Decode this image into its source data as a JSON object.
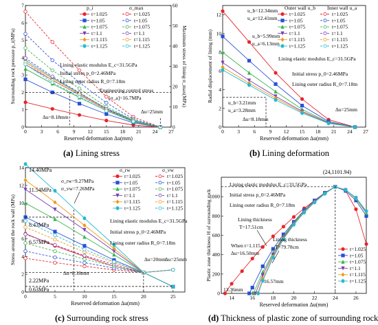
{
  "captions": {
    "a": {
      "tag": "(a)",
      "text": "Lining stress"
    },
    "b": {
      "tag": "(b)",
      "text": "Lining deformation"
    },
    "c": {
      "tag": "(c)",
      "text": "Surrounding rock stress"
    },
    "d": {
      "tag": "(d)",
      "text": "Thickness of plastic zone of surrounding rock"
    }
  },
  "colors": {
    "t1.025": "#e8242b",
    "t1.05": "#2a4fd6",
    "t1.075": "#39b54a",
    "t1.1": "#7b3fb0",
    "t1.115": "#ee9a1a",
    "t1.125": "#24b9d2"
  },
  "chart_data": [
    {
      "id": "a",
      "type": "line",
      "xlabel": "Reserved deformation Δu(mm)",
      "ylabel": "Surrounding rock pressure p_i(MPa)",
      "y2label": "Maximum stress of lining σ_max(MPa)",
      "xlim": [
        0,
        27
      ],
      "ylim": [
        0,
        7
      ],
      "y2lim": [
        0,
        60
      ],
      "xticks": [
        0,
        3,
        6,
        9,
        12,
        15,
        18,
        21,
        24,
        27
      ],
      "yticks": [
        0,
        1,
        2,
        3,
        4,
        5,
        6,
        7
      ],
      "y2ticks": [
        0,
        10,
        20,
        30,
        40,
        50,
        60
      ],
      "legend": {
        "col_headers": [
          "p_i",
          "σ_max"
        ],
        "rows": [
          "t=1.025",
          "t=1.05",
          "t=1.075",
          "t=1.1",
          "t=1.115",
          "t=1.125"
        ],
        "placement": "top-right"
      },
      "texts": [
        "Lining elastic modulus E_c=31.5GPa",
        "Initial stress p_0=2.46MPa",
        "Lining outer radius R_0=7.18m",
        "Engineering control stress",
        "[σ_a]=16.7MPa",
        "Δu=8.18mm",
        "Δu=25mm"
      ],
      "series": [
        {
          "name": "t=1.025",
          "x": [
            0,
            5,
            10,
            15,
            20,
            25
          ],
          "y": [
            1.43,
            1.05,
            0.7,
            0.38,
            0.12,
            0.0
          ]
        },
        {
          "name": "t=1.05",
          "x": [
            0,
            5,
            10,
            15,
            20,
            25
          ],
          "y": [
            2.75,
            2.0,
            1.35,
            0.75,
            0.25,
            0.0
          ]
        },
        {
          "name": "t=1.075",
          "x": [
            0,
            5,
            10,
            15,
            20,
            25
          ],
          "y": [
            3.35,
            2.5,
            1.7,
            0.95,
            0.3,
            0.0
          ]
        },
        {
          "name": "t=1.1",
          "x": [
            0,
            5,
            10,
            15,
            20,
            25
          ],
          "y": [
            3.6,
            2.7,
            1.85,
            1.0,
            0.35,
            0.0
          ]
        },
        {
          "name": "t=1.115",
          "x": [
            0,
            5,
            10,
            15,
            20,
            25
          ],
          "y": [
            3.75,
            2.8,
            1.92,
            1.05,
            0.38,
            0.0
          ]
        },
        {
          "name": "t=1.125",
          "x": [
            0,
            5,
            10,
            15,
            20,
            25
          ],
          "y": [
            3.85,
            2.85,
            1.95,
            1.08,
            0.4,
            0.0
          ]
        },
        {
          "name": "σmax t=1.025",
          "x": [
            0,
            5,
            10,
            15,
            20,
            25
          ],
          "y2": [
            57,
            42,
            28,
            15,
            5,
            0
          ]
        },
        {
          "name": "σmax t=1.05",
          "x": [
            0,
            5,
            10,
            15,
            20,
            25
          ],
          "y2": [
            46,
            33,
            22,
            12,
            4,
            0
          ]
        },
        {
          "name": "σmax t=1.075",
          "x": [
            0,
            5,
            10,
            15,
            20,
            25
          ],
          "y2": [
            39,
            28,
            19,
            10,
            3.5,
            0
          ]
        },
        {
          "name": "σmax t=1.1",
          "x": [
            0,
            5,
            10,
            15,
            20,
            25
          ],
          "y2": [
            34,
            25,
            17,
            9,
            3,
            0
          ]
        },
        {
          "name": "σmax t=1.115",
          "x": [
            0,
            5,
            10,
            15,
            20,
            25
          ],
          "y2": [
            32,
            23,
            16,
            8.5,
            3,
            0
          ]
        },
        {
          "name": "σmax t=1.125",
          "x": [
            0,
            5,
            10,
            15,
            20,
            25
          ],
          "y2": [
            31,
            22,
            15,
            8,
            2.8,
            0
          ]
        }
      ]
    },
    {
      "id": "b",
      "type": "line",
      "xlabel": "Reserved deformation Δu(mm)",
      "ylabel": "Radial displacement of lining (mm)",
      "xlim": [
        0,
        27
      ],
      "ylim": [
        0,
        13
      ],
      "xticks": [
        0,
        3,
        6,
        9,
        12,
        15,
        18,
        21,
        24,
        27
      ],
      "yticks": [
        0,
        2,
        4,
        6,
        8,
        10,
        12
      ],
      "legend": {
        "col_headers": [
          "Outer wall u_b",
          "Inner wall u_a"
        ],
        "rows": [
          "t=1.025",
          "t=1.05",
          "t=1.075",
          "t=1.1",
          "t=1.115",
          "t=1.125"
        ],
        "placement": "top-right"
      },
      "texts": [
        "u_b=12.34mm",
        "u_a=12.41mm",
        "u_b=5.99mm",
        "u_a=6.13mm",
        "u_b=3.21mm",
        "u_a=3.28mm",
        "Δu=8.18mm",
        "Δu=25mm",
        "Lining elastic modulus E_c=31.5GPa",
        "Initial stress p_0=2.46MPa",
        "Lining outer radius R_0=7.18m"
      ],
      "series": [
        {
          "name": "t=1.025",
          "x": [
            0,
            5,
            10,
            15,
            20,
            25
          ],
          "y": [
            12.4,
            9.1,
            5.8,
            3.0,
            0.8,
            0.0
          ]
        },
        {
          "name": "t=1.05",
          "x": [
            0,
            5,
            10,
            15,
            20,
            25
          ],
          "y": [
            9.7,
            7.1,
            4.6,
            2.3,
            0.6,
            0.0
          ]
        },
        {
          "name": "t=1.075",
          "x": [
            0,
            5,
            10,
            15,
            20,
            25
          ],
          "y": [
            8.0,
            5.8,
            3.8,
            1.9,
            0.5,
            0.0
          ]
        },
        {
          "name": "t=1.1",
          "x": [
            0,
            5,
            10,
            15,
            20,
            25
          ],
          "y": [
            6.9,
            5.0,
            3.3,
            1.7,
            0.45,
            0.0
          ]
        },
        {
          "name": "t=1.115",
          "x": [
            0,
            5,
            10,
            15,
            20,
            25
          ],
          "y": [
            6.4,
            4.7,
            3.1,
            1.6,
            0.4,
            0.0
          ]
        },
        {
          "name": "t=1.125",
          "x": [
            0,
            5,
            10,
            15,
            20,
            25
          ],
          "y": [
            6.1,
            4.5,
            2.9,
            1.5,
            0.4,
            0.0
          ]
        }
      ]
    },
    {
      "id": "c",
      "type": "line",
      "xlabel": "Reserved deformation Δu(mm)",
      "ylabel": "Stress around the rock wall (MPa)",
      "xlim": [
        0,
        27
      ],
      "ylim": [
        0,
        14
      ],
      "xticks": [
        0,
        5,
        10,
        15,
        20,
        25
      ],
      "yticks": [
        0,
        2,
        4,
        6,
        8,
        10,
        12,
        14
      ],
      "legend": {
        "col_headers": [
          "σ_rw",
          "σ_vw"
        ],
        "rows": [
          "t=1.025",
          "t=1.05",
          "t=1.075",
          "t=1.1",
          "t=1.115",
          "t=1.125"
        ],
        "placement": "top-right"
      },
      "texts": [
        "14.40MPa",
        "11.54MPa",
        "8.43MPa",
        "6.57MPa",
        "2.22MPa",
        "0.63MPa",
        "σ_rw=9.27MPa",
        "σ_vw=7.26MPa",
        "Δu=8.18mm",
        "Δu=20mm",
        "Δu=25mm",
        "Lining elastic modulus E_c=31.5GPa",
        "Initial stress p_0=2.46MPa",
        "Lining outer radius R_0=7.18m"
      ],
      "series": [
        {
          "name": "σrw t=1.025",
          "x": [
            0,
            5,
            10,
            15,
            20,
            25
          ],
          "y": [
            6.57,
            5.2,
            4.0,
            2.9,
            2.2,
            0.6
          ]
        },
        {
          "name": "σrw t=1.05",
          "x": [
            0,
            5,
            10,
            15,
            20,
            25
          ],
          "y": [
            8.43,
            6.8,
            5.2,
            3.6,
            2.2,
            0.6
          ]
        },
        {
          "name": "σrw t=1.075",
          "x": [
            0,
            5,
            10,
            15,
            20,
            25
          ],
          "y": [
            10.0,
            8.2,
            6.2,
            4.2,
            2.2,
            0.6
          ]
        },
        {
          "name": "σrw t=1.1",
          "x": [
            0,
            5,
            10,
            15,
            20,
            25
          ],
          "y": [
            11.54,
            9.3,
            7.0,
            4.6,
            2.2,
            0.6
          ]
        },
        {
          "name": "σrw t=1.115",
          "x": [
            0,
            5,
            10,
            15,
            20,
            25
          ],
          "y": [
            12.6,
            10.1,
            7.5,
            4.9,
            2.2,
            0.6
          ]
        },
        {
          "name": "σrw t=1.125",
          "x": [
            0,
            5,
            10,
            15,
            20,
            25
          ],
          "y": [
            14.4,
            11.4,
            8.3,
            5.3,
            2.2,
            0.6
          ]
        },
        {
          "name": "σvw t=1.025",
          "x": [
            0,
            5,
            10,
            15,
            20,
            25
          ],
          "y": [
            3.8,
            3.3,
            2.9,
            2.5,
            2.2,
            2.5
          ]
        },
        {
          "name": "σvw t=1.05",
          "x": [
            0,
            5,
            10,
            15,
            20,
            25
          ],
          "y": [
            4.6,
            3.9,
            3.3,
            2.7,
            2.2,
            2.5
          ]
        },
        {
          "name": "σvw t=1.075",
          "x": [
            0,
            5,
            10,
            15,
            20,
            25
          ],
          "y": [
            5.5,
            4.6,
            3.7,
            2.9,
            2.2,
            2.5
          ]
        },
        {
          "name": "σvw t=1.1",
          "x": [
            0,
            5,
            10,
            15,
            20,
            25
          ],
          "y": [
            6.5,
            5.3,
            4.1,
            3.1,
            2.2,
            2.5
          ]
        },
        {
          "name": "σvw t=1.115",
          "x": [
            0,
            5,
            10,
            15,
            20,
            25
          ],
          "y": [
            7.3,
            5.9,
            4.5,
            3.3,
            2.2,
            2.5
          ]
        },
        {
          "name": "σvw t=1.125",
          "x": [
            0,
            5,
            10,
            15,
            20,
            25
          ],
          "y": [
            8.0,
            6.4,
            4.8,
            3.4,
            2.2,
            2.5
          ]
        }
      ]
    },
    {
      "id": "d",
      "type": "line",
      "xlabel": "Reserved deformation Δu(mm)",
      "ylabel": "Plastic zone thickness H of surrounding rock",
      "xlim": [
        13,
        27
      ],
      "ylim": [
        0,
        1200
      ],
      "xticks": [
        14,
        16,
        18,
        20,
        22,
        24,
        26
      ],
      "yticks": [
        0,
        200,
        400,
        600,
        800,
        1000
      ],
      "legend": {
        "rows": [
          "t=1.025",
          "t=1.05",
          "t=1.075",
          "t=1.1",
          "t=1.115",
          "t=1.125"
        ],
        "placement": "bottom-right"
      },
      "texts": [
        "(24,1101.94)",
        "Lining elastic modulus E_c=31.5GPa",
        "Initial stress p_0=2.46MPa",
        "Lining outer radius R_0=7.18m",
        "Lining thickness",
        "T=17.51cm",
        "Lining thickness",
        "T=79.78cm",
        "When t=1.115,",
        "Δu=16.50mm",
        "13.36mm",
        "16.57mm"
      ],
      "series": [
        {
          "name": "t=1.025",
          "x": [
            13.36,
            14,
            15,
            16,
            17,
            18,
            19,
            20,
            21,
            22,
            23,
            24,
            25,
            26,
            27
          ],
          "y": [
            0,
            100,
            230,
            360,
            480,
            590,
            690,
            790,
            880,
            960,
            1040,
            1101.94,
            1060,
            870,
            510
          ]
        },
        {
          "name": "t=1.05",
          "x": [
            15.7,
            16,
            17,
            18,
            19,
            20,
            21,
            22,
            23,
            24,
            25,
            26,
            27
          ],
          "y": [
            0,
            60,
            280,
            460,
            610,
            740,
            860,
            960,
            1040,
            1101.94,
            1060,
            960,
            800
          ]
        },
        {
          "name": "t=1.075",
          "x": [
            16.1,
            17,
            18,
            19,
            20,
            21,
            22,
            23,
            24,
            25,
            26,
            27
          ],
          "y": [
            0,
            220,
            420,
            590,
            730,
            850,
            950,
            1040,
            1101.94,
            1070,
            980,
            830
          ]
        },
        {
          "name": "t=1.1",
          "x": [
            16.3,
            17,
            18,
            19,
            20,
            21,
            22,
            23,
            24,
            25,
            26,
            27
          ],
          "y": [
            0,
            190,
            400,
            580,
            720,
            840,
            950,
            1035,
            1101.94,
            1070,
            985,
            840
          ]
        },
        {
          "name": "t=1.115",
          "x": [
            16.5,
            17,
            18,
            19,
            20,
            21,
            22,
            23,
            24,
            25,
            26,
            27
          ],
          "y": [
            0,
            150,
            380,
            570,
            715,
            840,
            945,
            1030,
            1101.94,
            1070,
            985,
            845
          ]
        },
        {
          "name": "t=1.125",
          "x": [
            16.57,
            17,
            18,
            19,
            20,
            21,
            22,
            23,
            24,
            25,
            26,
            27
          ],
          "y": [
            0,
            130,
            370,
            560,
            710,
            835,
            940,
            1030,
            1101.94,
            1070,
            990,
            850
          ]
        }
      ]
    }
  ]
}
